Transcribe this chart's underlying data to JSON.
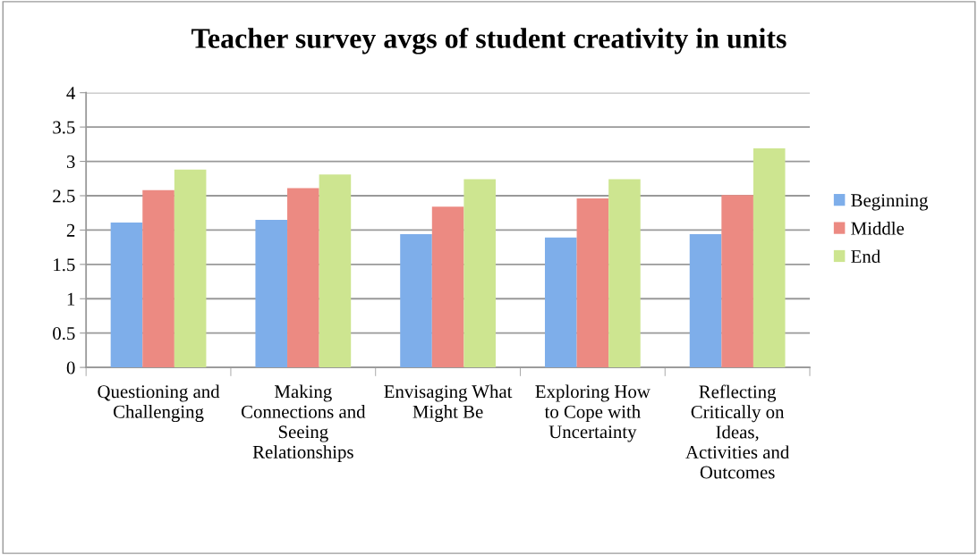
{
  "chart_data": {
    "type": "bar",
    "title": "Teacher survey avgs of student creativity in units",
    "categories": [
      "Questioning and Challenging",
      "Making Connections and Seeing Relationships",
      "Envisaging What Might Be",
      "Exploring How to Cope with Uncertainty",
      "Reflecting Critically on Ideas, Activities and Outcomes"
    ],
    "series": [
      {
        "name": "Beginning",
        "color": "#7eaeea",
        "values": [
          2.11,
          2.15,
          1.94,
          1.89,
          1.94
        ]
      },
      {
        "name": "Middle",
        "color": "#ec8a82",
        "values": [
          2.58,
          2.61,
          2.34,
          2.46,
          2.51
        ]
      },
      {
        "name": "End",
        "color": "#cde590",
        "values": [
          2.88,
          2.81,
          2.74,
          2.74,
          3.19
        ]
      }
    ],
    "ylim": [
      0,
      4
    ],
    "yticks": [
      0,
      0.5,
      1,
      1.5,
      2,
      2.5,
      3,
      3.5,
      4
    ],
    "grid": "y",
    "legend": "right"
  }
}
